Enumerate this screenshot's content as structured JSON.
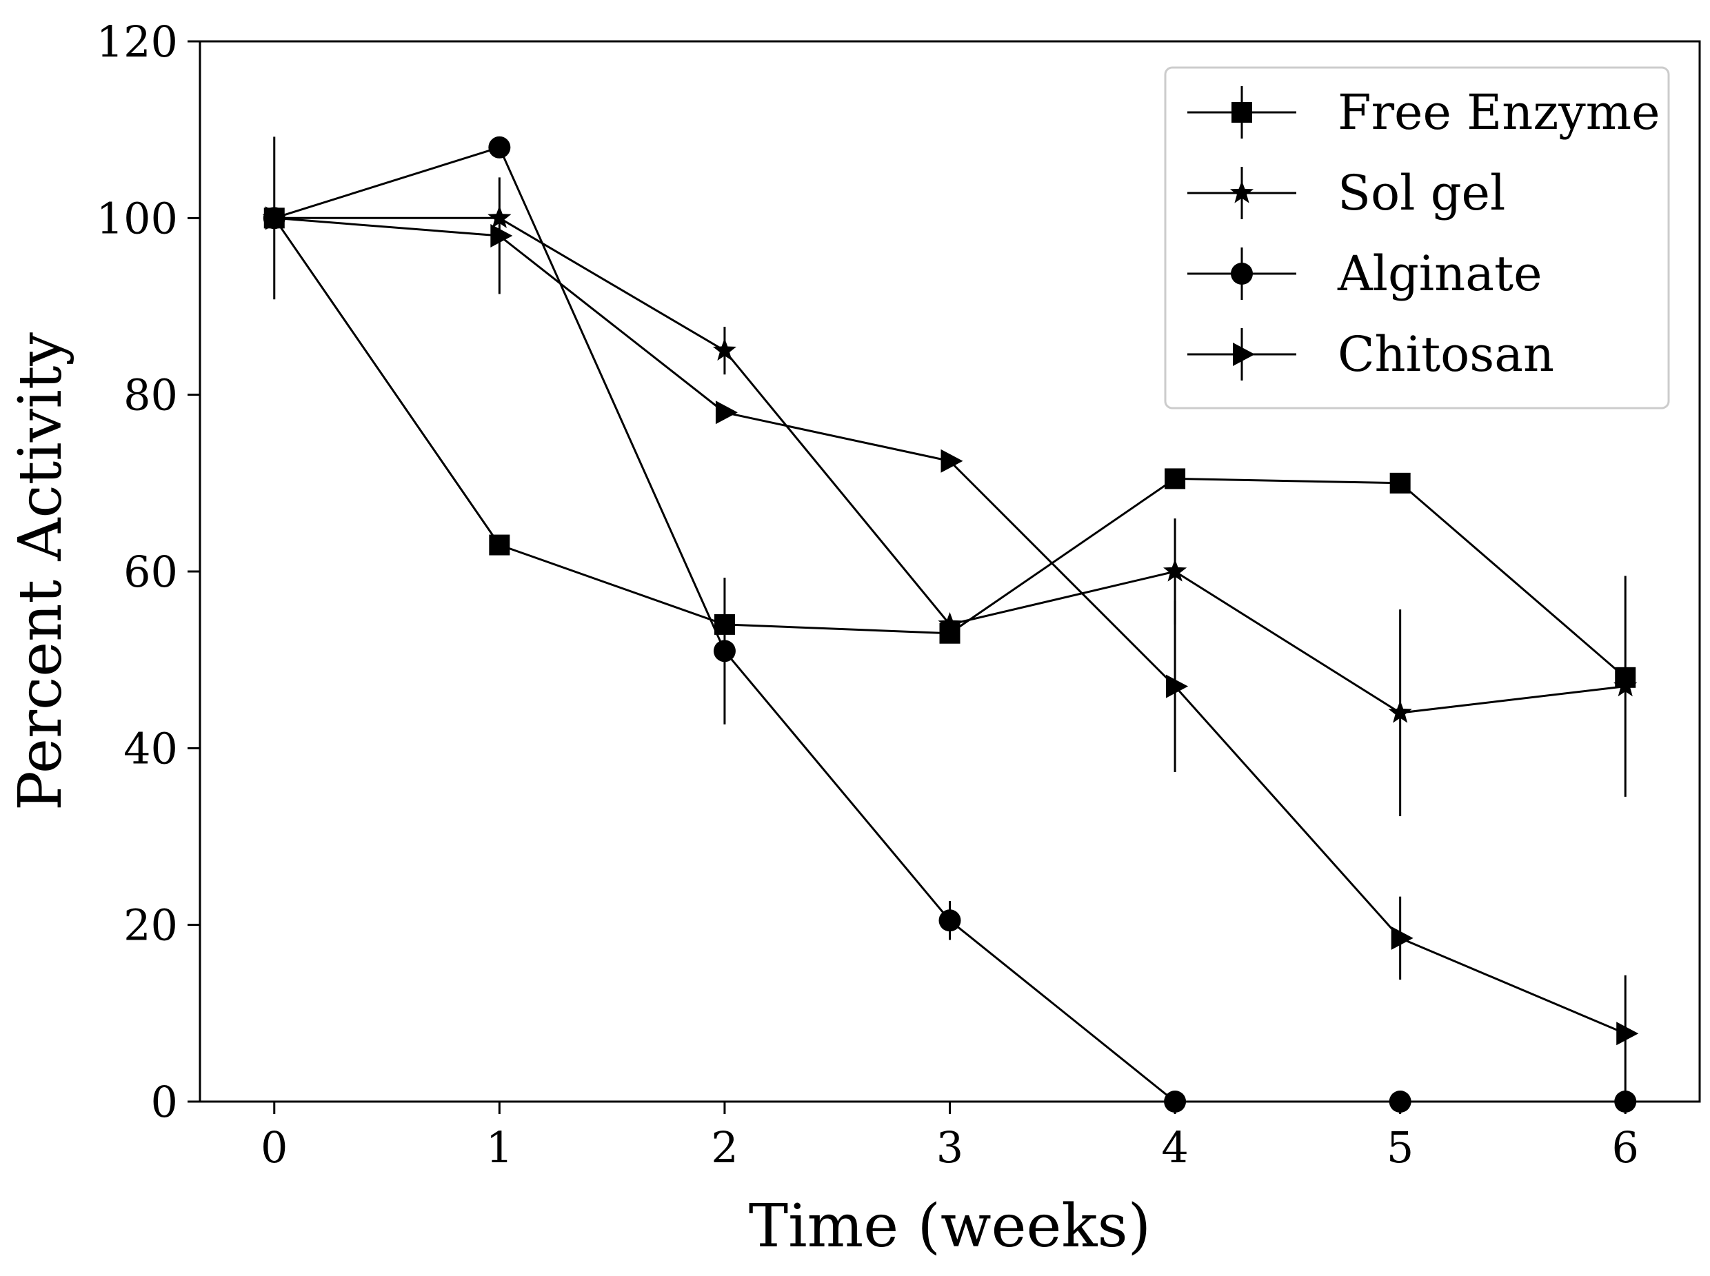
{
  "chart_data": {
    "type": "line",
    "title": "",
    "xlabel": "Time (weeks)",
    "ylabel": "Percent Activity",
    "xlim": [
      -0.33,
      6.33
    ],
    "ylim": [
      0,
      120
    ],
    "xticks": [
      0,
      1,
      2,
      3,
      4,
      5,
      6
    ],
    "yticks": [
      0,
      20,
      40,
      60,
      80,
      100,
      120
    ],
    "grid": false,
    "legend_position": "top-right",
    "series": [
      {
        "name": "Free Enzyme",
        "marker": "square",
        "x": [
          0,
          1,
          2,
          3,
          4,
          5,
          6
        ],
        "values": [
          100,
          63,
          54,
          53,
          70.5,
          70,
          48
        ],
        "errors": [
          0,
          0,
          0,
          0,
          0,
          0,
          0
        ]
      },
      {
        "name": "Sol gel",
        "marker": "star",
        "x": [
          0,
          1,
          2,
          3,
          4,
          5,
          6
        ],
        "values": [
          100,
          100,
          85,
          54,
          60,
          44,
          47
        ],
        "errors": [
          0,
          0,
          2.7,
          0,
          6,
          11.7,
          12.5
        ]
      },
      {
        "name": "Alginate",
        "marker": "circle",
        "x": [
          0,
          1,
          2,
          3,
          4,
          5,
          6
        ],
        "values": [
          100,
          108,
          51,
          20.5,
          0,
          0,
          0
        ],
        "errors": [
          0,
          0,
          8.3,
          2.2,
          0,
          0,
          0
        ]
      },
      {
        "name": "Chitosan",
        "marker": "triangle-right",
        "x": [
          0,
          1,
          2,
          3,
          4,
          5,
          6
        ],
        "values": [
          100,
          98,
          78,
          72.5,
          47,
          18.5,
          7.7
        ],
        "errors": [
          9.2,
          6.6,
          0,
          0,
          9.7,
          4.7,
          6.6
        ]
      }
    ]
  }
}
